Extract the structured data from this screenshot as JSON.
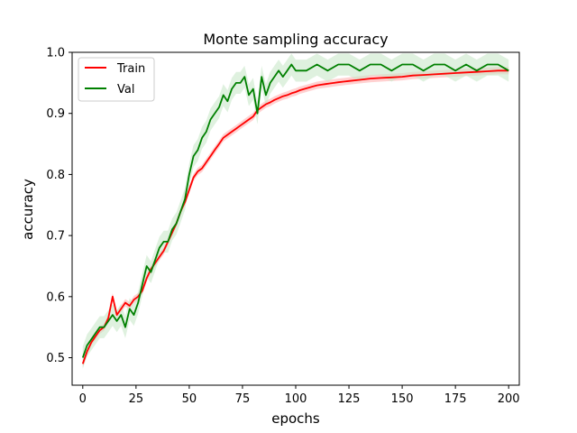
{
  "chart_data": {
    "type": "line",
    "title": "Monte sampling accuracy",
    "xlabel": "epochs",
    "ylabel": "accuracy",
    "xlim": [
      -5,
      205
    ],
    "ylim": [
      0.455,
      1.0
    ],
    "xticks": [
      0,
      25,
      50,
      75,
      100,
      125,
      150,
      175,
      200
    ],
    "yticks": [
      0.5,
      0.6,
      0.7,
      0.8,
      0.9,
      1.0
    ],
    "xtick_labels": [
      "0",
      "25",
      "50",
      "75",
      "100",
      "125",
      "150",
      "175",
      "200"
    ],
    "ytick_labels": [
      "0.5",
      "0.6",
      "0.7",
      "0.8",
      "0.9",
      "1.0"
    ],
    "grid": false,
    "legend_position": "top-left",
    "series": [
      {
        "name": "Train",
        "color": "#ff0000",
        "band_color": "#ffb3b3",
        "band_halfwidth": 0.006,
        "x": [
          0,
          2,
          4,
          6,
          8,
          10,
          12,
          14,
          16,
          18,
          20,
          22,
          24,
          26,
          28,
          30,
          32,
          34,
          36,
          38,
          40,
          42,
          44,
          46,
          48,
          50,
          52,
          54,
          56,
          58,
          60,
          62,
          64,
          66,
          68,
          70,
          72,
          74,
          76,
          78,
          80,
          82,
          84,
          86,
          88,
          90,
          92,
          94,
          96,
          98,
          100,
          102,
          104,
          106,
          108,
          110,
          112,
          114,
          116,
          118,
          120,
          125,
          130,
          135,
          140,
          145,
          150,
          155,
          160,
          165,
          170,
          175,
          180,
          185,
          190,
          195,
          200
        ],
        "values": [
          0.49,
          0.51,
          0.525,
          0.535,
          0.545,
          0.55,
          0.565,
          0.6,
          0.57,
          0.58,
          0.59,
          0.585,
          0.595,
          0.6,
          0.61,
          0.63,
          0.645,
          0.655,
          0.665,
          0.675,
          0.69,
          0.705,
          0.72,
          0.74,
          0.755,
          0.775,
          0.795,
          0.805,
          0.81,
          0.82,
          0.83,
          0.84,
          0.85,
          0.86,
          0.865,
          0.87,
          0.875,
          0.88,
          0.885,
          0.89,
          0.895,
          0.905,
          0.91,
          0.915,
          0.918,
          0.922,
          0.925,
          0.928,
          0.93,
          0.933,
          0.935,
          0.938,
          0.94,
          0.942,
          0.944,
          0.946,
          0.947,
          0.948,
          0.949,
          0.95,
          0.951,
          0.953,
          0.955,
          0.957,
          0.958,
          0.959,
          0.96,
          0.962,
          0.963,
          0.964,
          0.965,
          0.966,
          0.967,
          0.968,
          0.969,
          0.97,
          0.97
        ]
      },
      {
        "name": "Val",
        "color": "#008000",
        "band_color": "#c9e7c9",
        "band_halfwidth": 0.018,
        "x": [
          0,
          2,
          4,
          6,
          8,
          10,
          12,
          14,
          16,
          18,
          20,
          22,
          24,
          26,
          28,
          30,
          32,
          34,
          36,
          38,
          40,
          42,
          44,
          46,
          48,
          50,
          52,
          54,
          56,
          58,
          60,
          62,
          64,
          66,
          68,
          70,
          72,
          74,
          76,
          78,
          80,
          82,
          84,
          86,
          88,
          90,
          92,
          94,
          96,
          98,
          100,
          105,
          110,
          115,
          120,
          125,
          130,
          135,
          140,
          145,
          150,
          155,
          160,
          165,
          170,
          175,
          180,
          185,
          190,
          195,
          200
        ],
        "values": [
          0.5,
          0.52,
          0.53,
          0.54,
          0.55,
          0.55,
          0.56,
          0.57,
          0.56,
          0.57,
          0.55,
          0.58,
          0.57,
          0.59,
          0.62,
          0.65,
          0.64,
          0.66,
          0.68,
          0.69,
          0.69,
          0.71,
          0.72,
          0.74,
          0.76,
          0.8,
          0.83,
          0.84,
          0.86,
          0.87,
          0.89,
          0.9,
          0.91,
          0.93,
          0.92,
          0.94,
          0.95,
          0.95,
          0.96,
          0.93,
          0.94,
          0.9,
          0.96,
          0.93,
          0.95,
          0.96,
          0.97,
          0.96,
          0.97,
          0.98,
          0.97,
          0.97,
          0.98,
          0.97,
          0.98,
          0.98,
          0.97,
          0.98,
          0.98,
          0.97,
          0.98,
          0.98,
          0.97,
          0.98,
          0.98,
          0.97,
          0.98,
          0.97,
          0.98,
          0.98,
          0.97
        ]
      }
    ]
  }
}
